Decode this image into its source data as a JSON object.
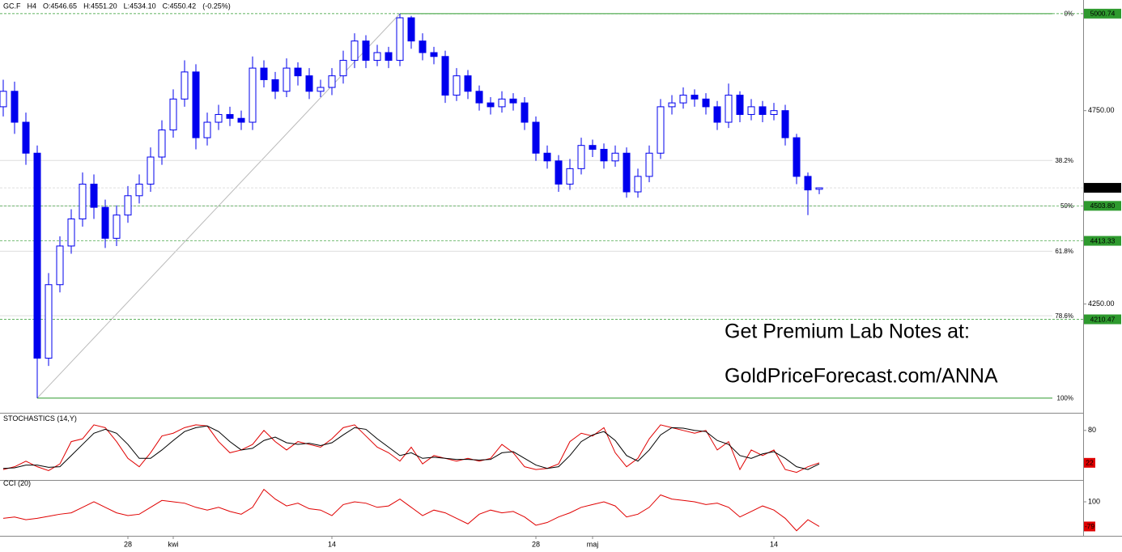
{
  "header": {
    "info": [
      "GC.F",
      "H4",
      "O:4546.65",
      "H:4551.20",
      "L:4534.10",
      "C:4550.42",
      "(-0.25%)"
    ]
  },
  "watermark": [
    "Get Premium Lab Notes at:",
    "GoldPriceForecast.com/ANNA"
  ],
  "chart_data": [
    {
      "type": "candlestick",
      "categories": [
        null,
        null,
        null,
        null,
        null,
        null,
        null,
        null,
        null,
        null,
        null,
        "28",
        null,
        null,
        null,
        "kwi",
        null,
        null,
        null,
        null,
        null,
        null,
        null,
        null,
        null,
        null,
        null,
        null,
        null,
        "14",
        null,
        null,
        null,
        null,
        null,
        null,
        null,
        null,
        null,
        null,
        null,
        null,
        null,
        null,
        null,
        null,
        null,
        "28",
        null,
        null,
        null,
        null,
        "maj",
        null,
        null,
        null,
        null,
        null,
        null,
        null,
        null,
        null,
        null,
        null,
        null,
        null,
        null,
        null,
        "14",
        null,
        null,
        null,
        null
      ],
      "open": [
        4760,
        4800,
        4720,
        4640,
        4110,
        4300,
        4400,
        4470,
        4560,
        4500,
        4420,
        4480,
        4530,
        4560,
        4630,
        4700,
        4780,
        4850,
        4680,
        4720,
        4740,
        4730,
        4720,
        4860,
        4830,
        4800,
        4860,
        4840,
        4800,
        4810,
        4840,
        4880,
        4930,
        4880,
        4900,
        4880,
        4990,
        4930,
        4900,
        4890,
        4790,
        4840,
        4800,
        4770,
        4760,
        4780,
        4770,
        4720,
        4640,
        4620,
        4560,
        4600,
        4660,
        4650,
        4620,
        4640,
        4540,
        4580,
        4640,
        4760,
        4770,
        4790,
        4780,
        4760,
        4720,
        4790,
        4740,
        4760,
        4740,
        4750,
        4680,
        4580,
        4546.65
      ],
      "high": [
        4830,
        4825,
        4745,
        4660,
        4330,
        4425,
        4495,
        4590,
        4585,
        4520,
        4505,
        4555,
        4585,
        4655,
        4725,
        4805,
        4880,
        4870,
        4745,
        4765,
        4760,
        4750,
        4890,
        4880,
        4850,
        4885,
        4875,
        4860,
        4830,
        4860,
        4905,
        4950,
        4945,
        4920,
        4915,
        5000.74,
        4995,
        4950,
        4915,
        4905,
        4860,
        4855,
        4815,
        4785,
        4800,
        4795,
        4785,
        4735,
        4660,
        4635,
        4625,
        4680,
        4675,
        4665,
        4660,
        4655,
        4600,
        4660,
        4780,
        4790,
        4810,
        4805,
        4795,
        4775,
        4820,
        4800,
        4780,
        4775,
        4770,
        4765,
        4690,
        4590,
        4551.2
      ],
      "low": [
        4735,
        4690,
        4610,
        4006.86,
        4090,
        4280,
        4380,
        4450,
        4470,
        4395,
        4400,
        4460,
        4510,
        4540,
        4610,
        4680,
        4760,
        4650,
        4660,
        4700,
        4710,
        4700,
        4700,
        4810,
        4780,
        4785,
        4815,
        4780,
        4785,
        4790,
        4820,
        4860,
        4860,
        4865,
        4860,
        4865,
        4910,
        4880,
        4870,
        4770,
        4775,
        4780,
        4750,
        4740,
        4745,
        4750,
        4700,
        4620,
        4600,
        4540,
        4545,
        4585,
        4630,
        4600,
        4605,
        4525,
        4525,
        4565,
        4625,
        4740,
        4755,
        4760,
        4740,
        4700,
        4705,
        4720,
        4725,
        4720,
        4725,
        4660,
        4560,
        4480,
        4534.1
      ],
      "close": [
        4800,
        4720,
        4640,
        4110,
        4300,
        4400,
        4470,
        4560,
        4500,
        4420,
        4480,
        4530,
        4560,
        4630,
        4700,
        4780,
        4850,
        4680,
        4720,
        4740,
        4730,
        4720,
        4860,
        4830,
        4800,
        4860,
        4840,
        4800,
        4810,
        4840,
        4880,
        4930,
        4880,
        4900,
        4880,
        4990,
        4930,
        4900,
        4890,
        4790,
        4840,
        4800,
        4770,
        4760,
        4780,
        4770,
        4720,
        4640,
        4620,
        4560,
        4600,
        4660,
        4650,
        4620,
        4640,
        4540,
        4580,
        4640,
        4760,
        4770,
        4790,
        4780,
        4760,
        4720,
        4790,
        4740,
        4760,
        4740,
        4750,
        4680,
        4580,
        4545,
        4550.42
      ],
      "color": "#0000ee",
      "ylim": [
        3973,
        5036
      ],
      "yticks": [
        {
          "value": 4750,
          "label": "4750.00"
        },
        {
          "value": 4250,
          "label": "4250.00"
        }
      ],
      "price_markers": {
        "values": [
          5000.74,
          4550.42,
          4503.8,
          4413.33,
          4210.47
        ],
        "value_labels": [
          "5000.74",
          "4550.42",
          "4503.80",
          "4413.33",
          "4210.47"
        ],
        "colors": [
          "#2e9a2e",
          "#000000",
          "#2e9a2e",
          "#2e9a2e",
          "#2e9a2e"
        ]
      },
      "fibonacci": {
        "high": 5000.74,
        "low": 4006.86,
        "color": "#2e9a2e",
        "levels": [
          {
            "value": 0,
            "label": "0%"
          },
          {
            "value": 38.2,
            "label": "38.2%"
          },
          {
            "value": 50,
            "label": "50%"
          },
          {
            "value": 61.8,
            "label": "61.8%"
          },
          {
            "value": 78.6,
            "label": "78.6%"
          },
          {
            "value": 100,
            "label": "100%"
          }
        ]
      }
    },
    {
      "type": "line",
      "title": "STOCHASTICS (14,Y)",
      "series": [
        {
          "color": "#e00000",
          "values": [
            10,
            15,
            25,
            15,
            8,
            20,
            60,
            65,
            90,
            85,
            60,
            30,
            15,
            40,
            70,
            75,
            85,
            90,
            88,
            60,
            40,
            45,
            55,
            80,
            60,
            45,
            60,
            55,
            50,
            65,
            85,
            90,
            70,
            50,
            40,
            25,
            50,
            20,
            35,
            30,
            25,
            30,
            25,
            30,
            55,
            40,
            15,
            10,
            12,
            20,
            60,
            75,
            70,
            85,
            40,
            15,
            30,
            65,
            90,
            85,
            80,
            75,
            80,
            45,
            60,
            10,
            45,
            35,
            45,
            10,
            5,
            15,
            22
          ]
        },
        {
          "color": "#000000",
          "values": [
            12,
            13,
            18,
            18,
            14,
            15,
            35,
            55,
            75,
            82,
            75,
            55,
            30,
            30,
            45,
            62,
            78,
            85,
            88,
            78,
            60,
            45,
            48,
            62,
            68,
            58,
            55,
            57,
            53,
            58,
            72,
            85,
            82,
            65,
            50,
            35,
            40,
            30,
            32,
            30,
            28,
            28,
            27,
            28,
            40,
            42,
            30,
            18,
            12,
            15,
            35,
            60,
            72,
            78,
            62,
            35,
            25,
            45,
            72,
            85,
            84,
            80,
            78,
            62,
            55,
            35,
            30,
            38,
            42,
            30,
            15,
            10,
            20
          ]
        }
      ],
      "ylim": [
        0,
        100
      ],
      "yticks": [
        80
      ]
    },
    {
      "type": "line",
      "title": "CCI (20)",
      "series": [
        {
          "color": "#e00000",
          "values": [
            -20,
            -10,
            -30,
            -20,
            -5,
            10,
            20,
            60,
            100,
            60,
            20,
            0,
            10,
            60,
            110,
            100,
            90,
            60,
            40,
            60,
            30,
            10,
            60,
            190,
            120,
            70,
            90,
            50,
            40,
            0,
            80,
            100,
            90,
            60,
            70,
            120,
            60,
            0,
            40,
            20,
            -20,
            -60,
            10,
            40,
            20,
            30,
            -10,
            -70,
            -50,
            -10,
            20,
            60,
            80,
            100,
            70,
            -10,
            10,
            60,
            150,
            120,
            110,
            100,
            80,
            90,
            60,
            -10,
            30,
            70,
            40,
            -20,
            -110,
            -30,
            -79
          ]
        }
      ],
      "ylim": [
        -135,
        235
      ],
      "yticks": [
        100
      ]
    }
  ]
}
